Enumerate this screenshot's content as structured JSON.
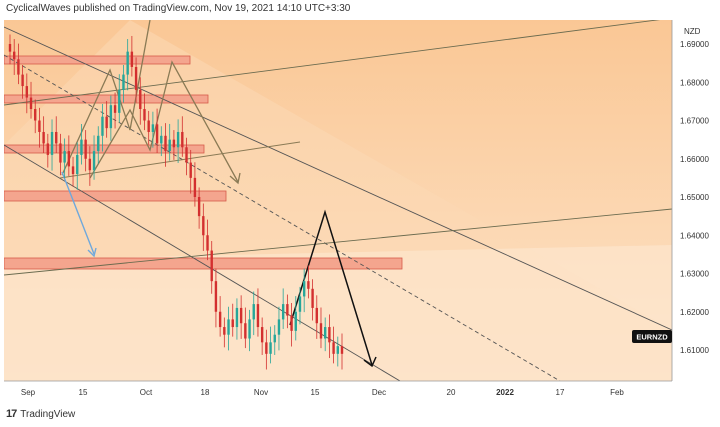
{
  "header": {
    "text": "CyclicalWaves published on TradingView.com, Nov 19, 2021 14:10 UTC+3:30"
  },
  "footer": {
    "brand": "TradingView",
    "logo_icon": "tradingview-logo-icon"
  },
  "chart_data": {
    "type": "candlestick",
    "symbol": "EURNZD",
    "currency": "NZD",
    "y_ticks": [
      "1.69000",
      "1.68000",
      "1.67000",
      "1.66000",
      "1.65000",
      "1.64000",
      "1.63000",
      "1.62000",
      "1.61000"
    ],
    "x_ticks": [
      "Sep",
      "15",
      "Oct",
      "18",
      "Nov",
      "15",
      "Dec",
      "20",
      "2022",
      "17",
      "Feb"
    ],
    "ylim": [
      1.602,
      1.693
    ],
    "last_price_label": "EURNZD",
    "series_close": [
      1.688,
      1.686,
      1.682,
      1.679,
      1.676,
      1.673,
      1.67,
      1.667,
      1.664,
      1.661,
      1.667,
      1.664,
      1.659,
      1.662,
      1.658,
      1.656,
      1.661,
      1.665,
      1.66,
      1.657,
      1.662,
      1.666,
      1.671,
      1.668,
      1.674,
      1.672,
      1.678,
      1.682,
      1.688,
      1.684,
      1.678,
      1.673,
      1.67,
      1.667,
      1.669,
      1.664,
      1.666,
      1.662,
      1.665,
      1.663,
      1.667,
      1.663,
      1.659,
      1.655,
      1.65,
      1.645,
      1.64,
      1.636,
      1.628,
      1.62,
      1.616,
      1.614,
      1.618,
      1.616,
      1.621,
      1.617,
      1.613,
      1.618,
      1.622,
      1.616,
      1.612,
      1.609,
      1.612,
      1.614,
      1.618,
      1.622,
      1.619,
      1.615,
      1.62,
      1.624,
      1.628,
      1.626,
      1.621,
      1.617,
      1.613,
      1.616,
      1.612,
      1.609,
      1.611,
      1.609
    ],
    "colors": {
      "up": "#26a69a",
      "down": "#d32f2f",
      "background_top": "#f9d3a5",
      "background_bottom": "#fce6cb",
      "zone_fill": "#f5a08a",
      "zone_stroke": "#c0392b",
      "arrow_blue": "#6fa8dc",
      "drawing_brown": "#8a7a55"
    }
  }
}
